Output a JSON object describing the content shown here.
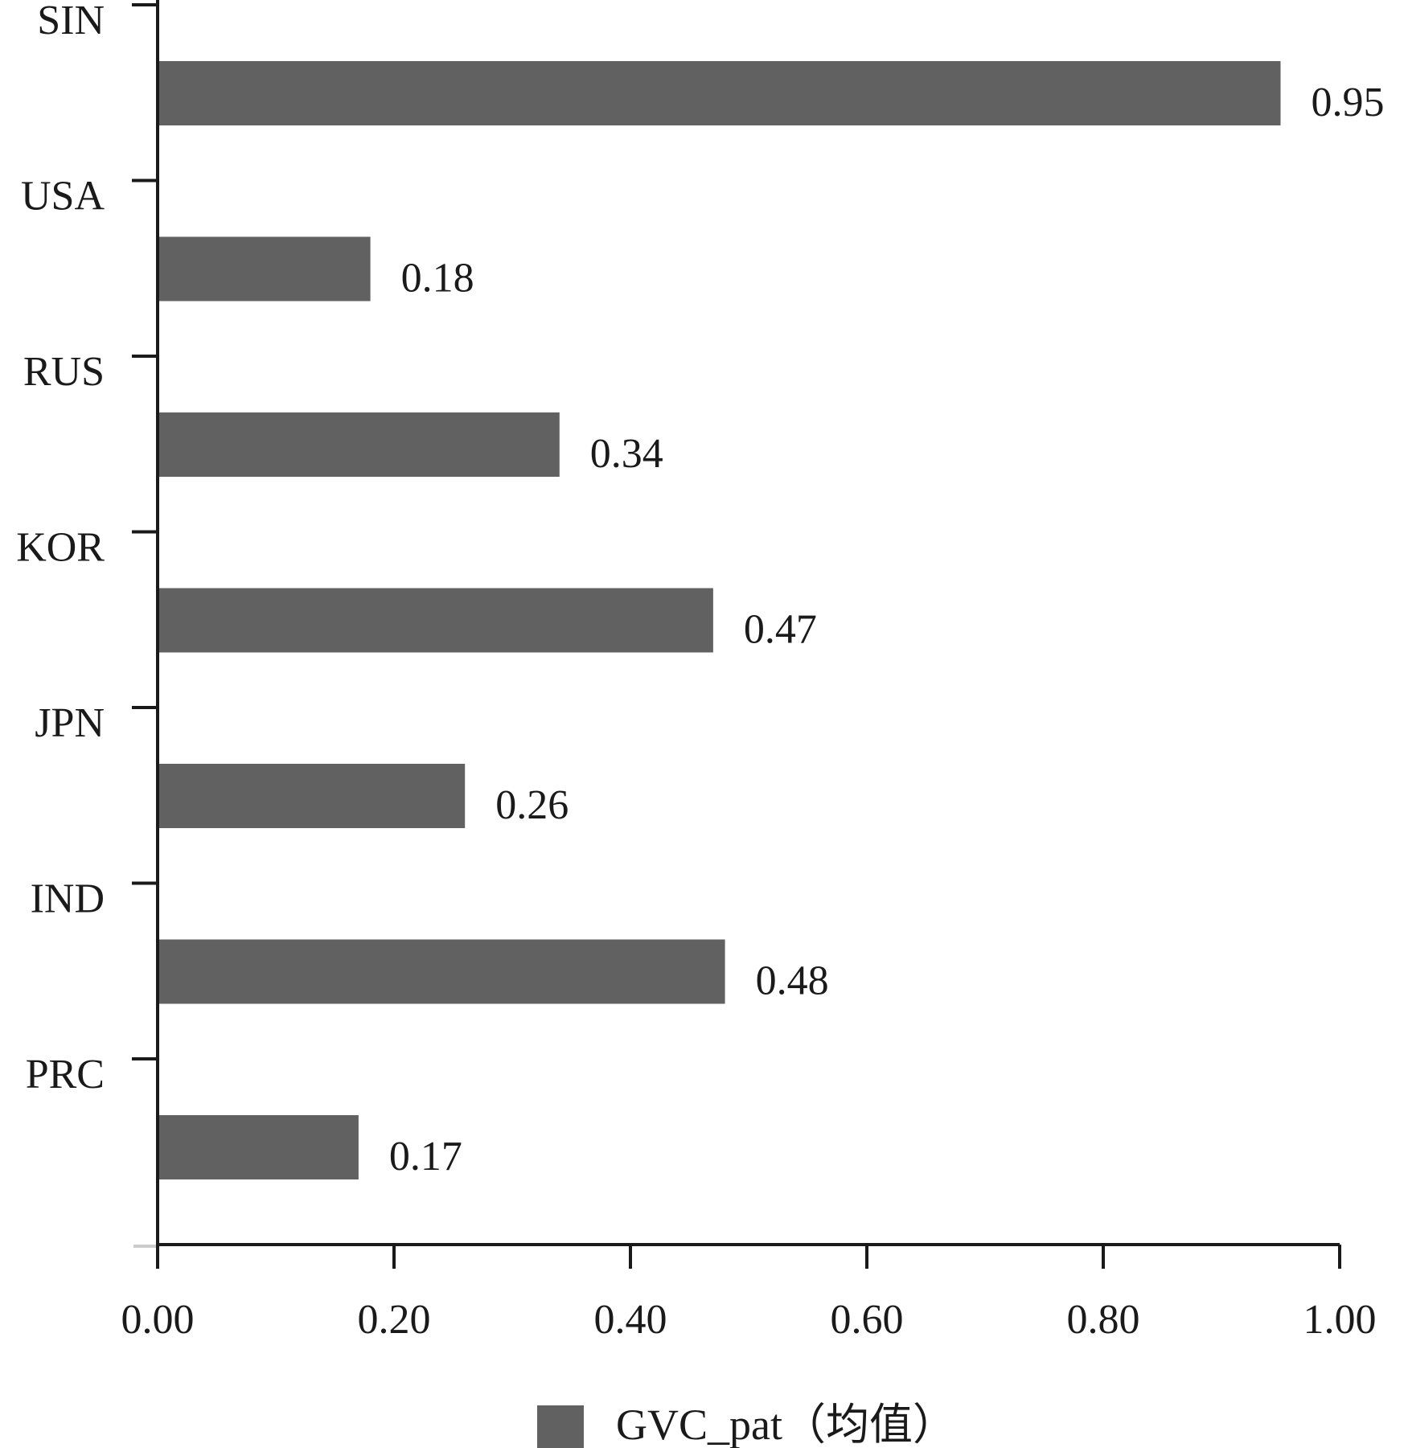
{
  "chart_data": {
    "type": "bar",
    "orientation": "horizontal",
    "categories": [
      "SIN",
      "USA",
      "RUS",
      "KOR",
      "JPN",
      "IND",
      "PRC"
    ],
    "series": [
      {
        "name": "GVC_pat（均值）",
        "values": [
          0.95,
          0.18,
          0.34,
          0.47,
          0.26,
          0.48,
          0.17
        ],
        "color": "#616161"
      }
    ],
    "data_labels": [
      "0.95",
      "0.18",
      "0.34",
      "0.47",
      "0.26",
      "0.48",
      "0.17"
    ],
    "x_ticks": [
      "0.00",
      "0.20",
      "0.40",
      "0.60",
      "0.80",
      "1.00"
    ],
    "xlim": [
      0,
      1.0
    ],
    "title": "",
    "xlabel": "",
    "ylabel": "",
    "grid": false,
    "legend_position": "bottom"
  }
}
